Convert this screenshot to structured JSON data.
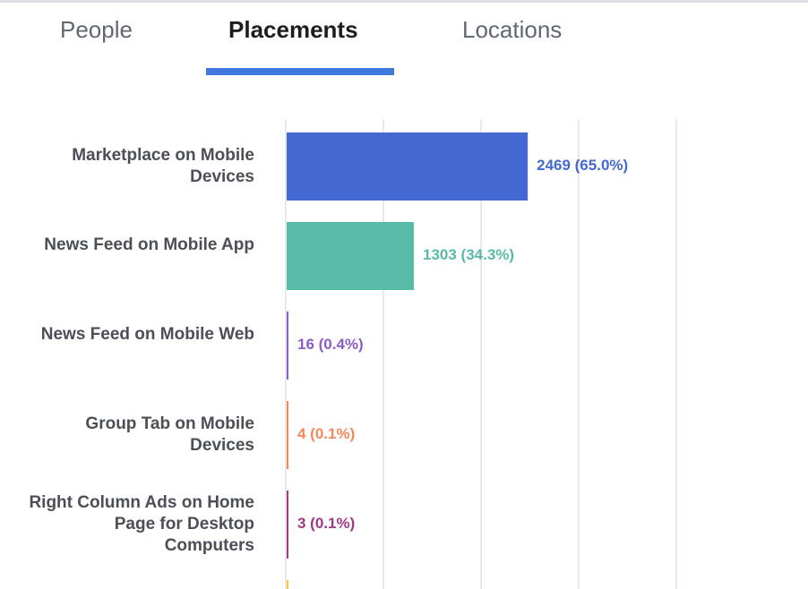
{
  "tabs": [
    {
      "label": "People",
      "active": false
    },
    {
      "label": "Placements",
      "active": true
    },
    {
      "label": "Locations",
      "active": false
    }
  ],
  "accent_color": "#4178dd",
  "chart_data": {
    "type": "bar",
    "orientation": "horizontal",
    "title": "",
    "xlabel": "",
    "ylabel": "",
    "xlim": [
      0,
      4000
    ],
    "grid": true,
    "gridlines": [
      0,
      1000,
      2000,
      3000,
      4000
    ],
    "categories": [
      "Marketplace on Mobile Devices",
      "News Feed on Mobile App",
      "News Feed on Mobile Web",
      "Group Tab on Mobile Devices",
      "Right Column Ads on Home Page for Desktop Computers"
    ],
    "values": [
      2469,
      1303,
      16,
      4,
      3
    ],
    "data_labels": [
      "2469 (65.0%)",
      "1303 (34.3%)",
      "16 (0.4%)",
      "4 (0.1%)",
      "3 (0.1%)"
    ],
    "colors": [
      "#4169d1",
      "#57bba8",
      "#8c5cc6",
      "#f5875a",
      "#a2368a"
    ],
    "overflow_color": "#f7c933"
  }
}
